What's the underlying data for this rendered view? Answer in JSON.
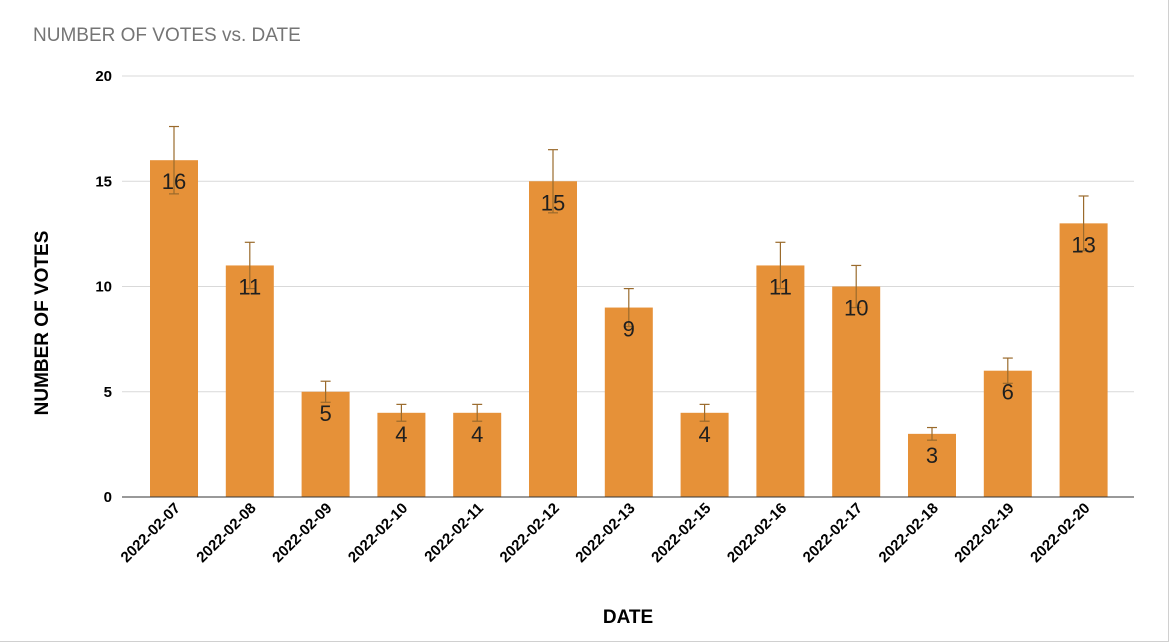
{
  "chart_data": {
    "type": "bar",
    "title": "NUMBER OF VOTES vs. DATE",
    "xlabel": "DATE",
    "ylabel": "NUMBER OF VOTES",
    "ylim": [
      0,
      20
    ],
    "yticks": [
      "0",
      "5",
      "10",
      "15",
      "20"
    ],
    "grid": true,
    "legend": "none",
    "bar_color": "#e69138",
    "categories": [
      "2022-02-07",
      "2022-02-08",
      "2022-02-09",
      "2022-02-10",
      "2022-02-11",
      "2022-02-12",
      "2022-02-13",
      "2022-02-15",
      "2022-02-16",
      "2022-02-17",
      "2022-02-18",
      "2022-02-19",
      "2022-02-20"
    ],
    "values": [
      16,
      11,
      5,
      4,
      4,
      15,
      9,
      4,
      11,
      10,
      3,
      6,
      13
    ],
    "data_labels": [
      "16",
      "11",
      "5",
      "4",
      "4",
      "15",
      "9",
      "4",
      "11",
      "10",
      "3",
      "6",
      "13"
    ],
    "error_bars": [
      [
        14.4,
        17.6
      ],
      [
        9.9,
        12.1
      ],
      [
        4.5,
        5.5
      ],
      [
        3.6,
        4.4
      ],
      [
        3.6,
        4.4
      ],
      [
        13.5,
        16.5
      ],
      [
        8.1,
        9.9
      ],
      [
        3.6,
        4.4
      ],
      [
        9.9,
        12.1
      ],
      [
        9.0,
        11.0
      ],
      [
        2.7,
        3.3
      ],
      [
        5.4,
        6.6
      ],
      [
        11.7,
        14.3
      ]
    ]
  }
}
